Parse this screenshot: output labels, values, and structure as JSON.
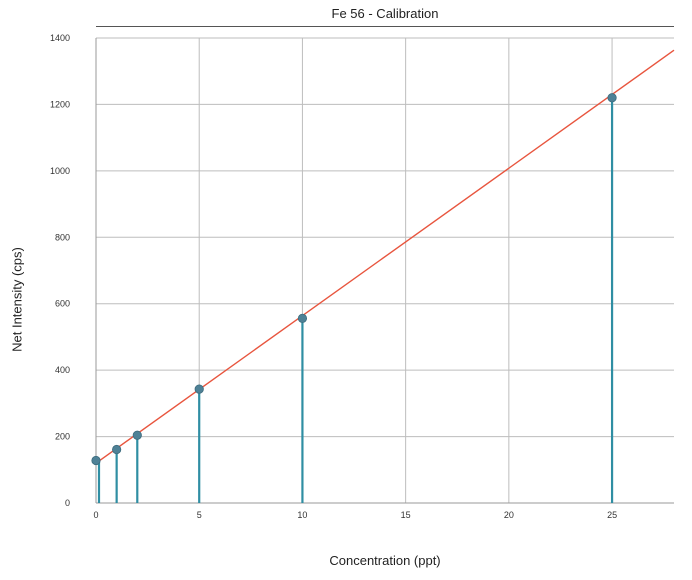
{
  "chart_data": {
    "type": "scatter",
    "title": "Fe 56    -    Calibration",
    "xlabel": "Concentration (ppt)",
    "ylabel": "Net Intensity (cps)",
    "xlim": [
      0,
      28
    ],
    "ylim": [
      0,
      1400
    ],
    "xticks": [
      0,
      5,
      10,
      15,
      20,
      25
    ],
    "yticks": [
      0,
      200,
      400,
      600,
      800,
      1000,
      1200,
      1400
    ],
    "grid": true,
    "colors": {
      "points": "#4e8196",
      "stems": "#2f8ea3",
      "fit_line": "#e8553e",
      "grid": "#bdbdbd"
    },
    "points": [
      {
        "x": 0,
        "y": 128
      },
      {
        "x": 1,
        "y": 161
      },
      {
        "x": 2,
        "y": 204
      },
      {
        "x": 5,
        "y": 343
      },
      {
        "x": 10,
        "y": 556
      },
      {
        "x": 25,
        "y": 1220
      }
    ],
    "fit_line": {
      "slope": 44.4,
      "intercept": 120
    }
  }
}
